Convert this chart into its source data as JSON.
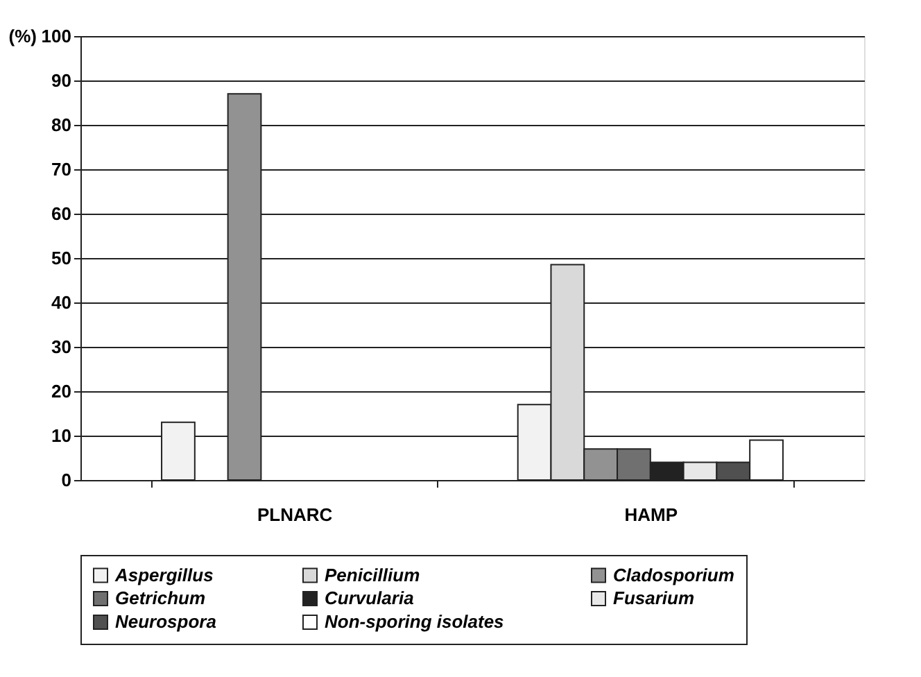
{
  "chart_data": {
    "type": "bar",
    "ylabel": "(%)",
    "categories": [
      "PLNARC",
      "HAMP"
    ],
    "series": [
      {
        "name": "Aspergillus",
        "color": "#f2f2f2",
        "values": [
          13,
          17
        ]
      },
      {
        "name": "Penicillium",
        "color": "#d9d9d9",
        "values": [
          null,
          48.5
        ]
      },
      {
        "name": "Cladosporium",
        "color": "#929292",
        "values": [
          87,
          7
        ]
      },
      {
        "name": "Getrichum",
        "color": "#707070",
        "values": [
          null,
          7
        ]
      },
      {
        "name": "Curvularia",
        "color": "#222222",
        "values": [
          null,
          4
        ]
      },
      {
        "name": "Fusarium",
        "color": "#e8e8e8",
        "values": [
          null,
          4
        ]
      },
      {
        "name": "Neurospora",
        "color": "#505050",
        "values": [
          null,
          4
        ]
      },
      {
        "name": "Non-sporing isolates",
        "color": "#ffffff",
        "values": [
          null,
          9
        ]
      }
    ],
    "ylim": [
      0,
      100
    ],
    "yticks": [
      0,
      10,
      20,
      30,
      40,
      50,
      60,
      70,
      80,
      90,
      100
    ],
    "grid": "y",
    "legend": "bottom"
  }
}
